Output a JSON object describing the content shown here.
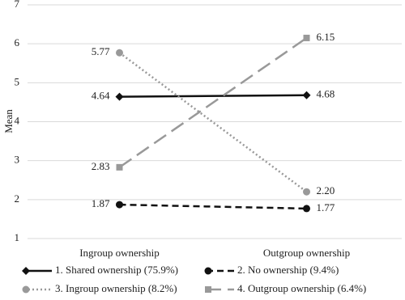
{
  "chart_data": {
    "type": "line",
    "y_label": "Mean",
    "categories": [
      "Ingroup ownership",
      "Outgroup ownership"
    ],
    "ylim": [
      1,
      7
    ],
    "yticks": [
      1,
      2,
      3,
      4,
      5,
      6,
      7
    ],
    "grid": true,
    "legend": "bottom",
    "series": [
      {
        "name": "1. Shared ownership (75.9%)",
        "color": "#111111",
        "dash": "solid",
        "marker": "diamond",
        "values": [
          4.64,
          4.68
        ],
        "value_labels": [
          "4.64",
          "4.68"
        ]
      },
      {
        "name": "2. No ownership (9.4%)",
        "color": "#111111",
        "dash": "dashed",
        "marker": "circle",
        "values": [
          1.87,
          1.77
        ],
        "value_labels": [
          "1.87",
          "1.77"
        ]
      },
      {
        "name": "3. Ingroup ownership (8.2%)",
        "color": "#999999",
        "dash": "dotted",
        "marker": "circle",
        "values": [
          5.77,
          2.2
        ],
        "value_labels": [
          "5.77",
          "2.20"
        ]
      },
      {
        "name": "4. Outgroup ownership (6.4%)",
        "color": "#999999",
        "dash": "longdash",
        "marker": "square",
        "values": [
          2.83,
          6.15
        ],
        "value_labels": [
          "2.83",
          "6.15"
        ]
      }
    ]
  }
}
